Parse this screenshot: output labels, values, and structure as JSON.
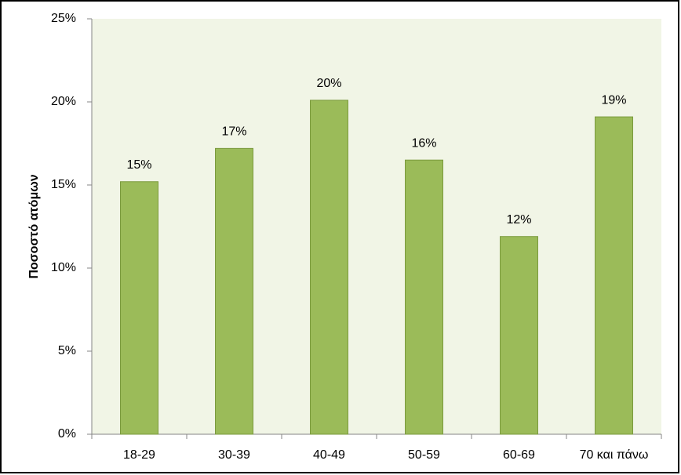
{
  "chart_data": {
    "type": "bar",
    "y_label": "Ποσοστό ατόμων",
    "categories": [
      "18-29",
      "30-39",
      "40-49",
      "50-59",
      "60-69",
      "70 και πάνω"
    ],
    "values": [
      15.2,
      17.2,
      20.1,
      16.5,
      11.9,
      19.1
    ],
    "value_labels": [
      "15%",
      "17%",
      "20%",
      "16%",
      "12%",
      "19%"
    ],
    "color": "#9bbb59",
    "ylim": [
      0,
      25
    ],
    "yticks": [
      {
        "value": 0,
        "label": "0%"
      },
      {
        "value": 5,
        "label": "5%"
      },
      {
        "value": 10,
        "label": "10%"
      },
      {
        "value": 15,
        "label": "15%"
      },
      {
        "value": 20,
        "label": "20%"
      },
      {
        "value": 25,
        "label": "25%"
      }
    ],
    "grid": false
  }
}
